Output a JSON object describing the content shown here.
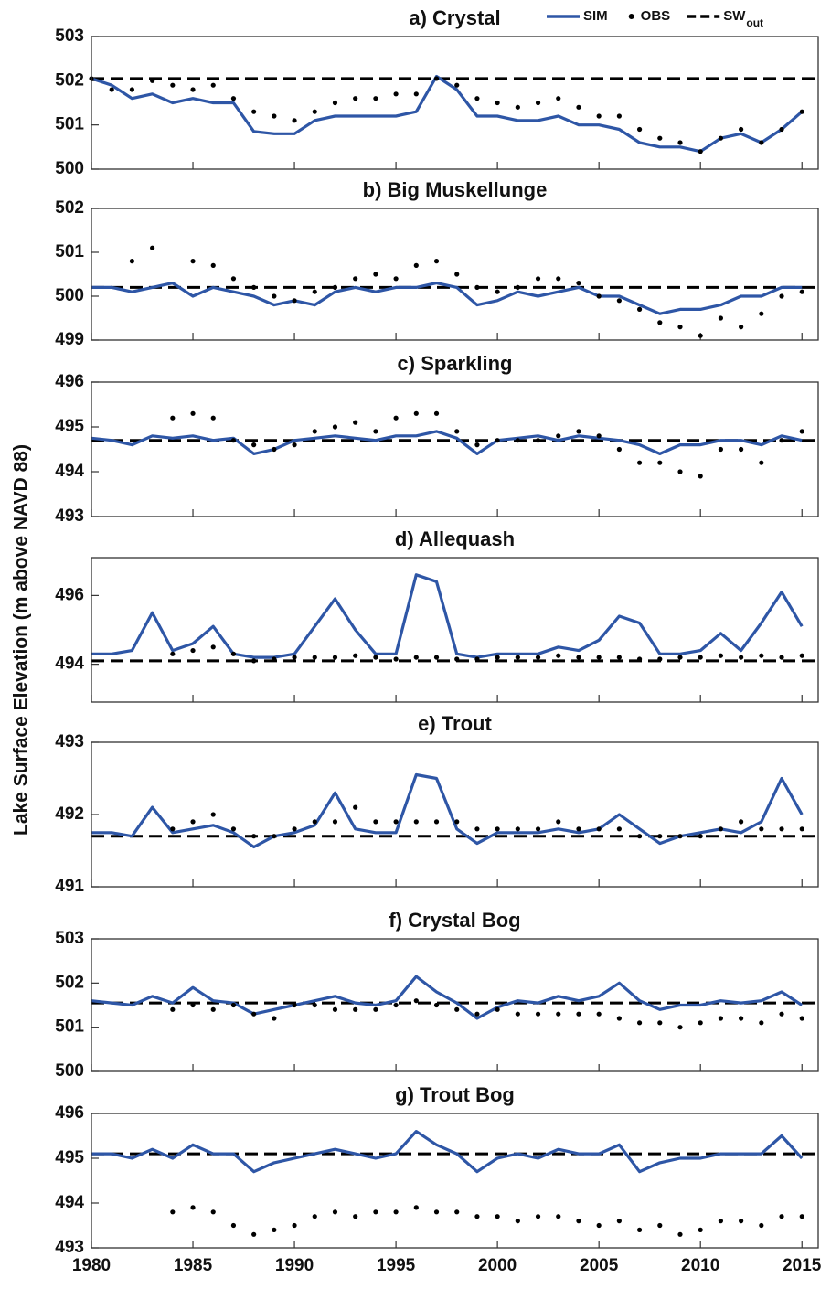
{
  "chart_data": {
    "type": "line",
    "ylabel": "Lake Surface Elevation (m above NAVD 88)",
    "xlim": [
      1980,
      2015.8
    ],
    "xticks": [
      1980,
      1985,
      1990,
      1995,
      2000,
      2005,
      2010,
      2015
    ],
    "legend": [
      {
        "name": "SIM",
        "color": "#2e56a6",
        "style": "solid"
      },
      {
        "name": "OBS",
        "color": "#000000",
        "style": "dots"
      },
      {
        "name": "SW",
        "subscript": "out",
        "color": "#000000",
        "style": "dashed"
      }
    ],
    "panels": [
      {
        "title": "a) Crystal",
        "ylim": [
          500,
          503
        ],
        "yticks": [
          500,
          501,
          502,
          503
        ],
        "x": [
          1980,
          1981,
          1982,
          1983,
          1984,
          1985,
          1986,
          1987,
          1988,
          1989,
          1990,
          1991,
          1992,
          1993,
          1994,
          1995,
          1996,
          1997,
          1998,
          1999,
          2000,
          2001,
          2002,
          2003,
          2004,
          2005,
          2006,
          2007,
          2008,
          2009,
          2010,
          2011,
          2012,
          2013,
          2014,
          2015
        ],
        "sim": [
          502.05,
          501.9,
          501.6,
          501.7,
          501.5,
          501.6,
          501.5,
          501.5,
          500.85,
          500.8,
          500.8,
          501.1,
          501.2,
          501.2,
          501.2,
          501.2,
          501.3,
          502.1,
          501.8,
          501.2,
          501.2,
          501.1,
          501.1,
          501.2,
          501.0,
          501.0,
          500.9,
          500.6,
          500.5,
          500.5,
          500.4,
          500.7,
          500.8,
          500.6,
          500.9,
          501.3
        ],
        "obs": [
          502.05,
          501.8,
          501.8,
          502.0,
          501.9,
          501.8,
          501.9,
          501.6,
          501.3,
          501.2,
          501.1,
          501.3,
          501.5,
          501.6,
          501.6,
          501.7,
          501.7,
          502.05,
          501.9,
          501.6,
          501.5,
          501.4,
          501.5,
          501.6,
          501.4,
          501.2,
          501.2,
          500.9,
          500.7,
          500.6,
          500.4,
          500.7,
          500.9,
          500.6,
          500.9,
          501.3
        ],
        "sw_out": 502.05
      },
      {
        "title": "b) Big Muskellunge",
        "ylim": [
          499,
          502
        ],
        "yticks": [
          499,
          500,
          501,
          502
        ],
        "x": [
          1980,
          1981,
          1982,
          1983,
          1984,
          1985,
          1986,
          1987,
          1988,
          1989,
          1990,
          1991,
          1992,
          1993,
          1994,
          1995,
          1996,
          1997,
          1998,
          1999,
          2000,
          2001,
          2002,
          2003,
          2004,
          2005,
          2006,
          2007,
          2008,
          2009,
          2010,
          2011,
          2012,
          2013,
          2014,
          2015
        ],
        "sim": [
          500.2,
          500.2,
          500.1,
          500.2,
          500.3,
          500.0,
          500.2,
          500.1,
          500.0,
          499.8,
          499.9,
          499.8,
          500.1,
          500.2,
          500.1,
          500.2,
          500.2,
          500.3,
          500.2,
          499.8,
          499.9,
          500.1,
          500.0,
          500.1,
          500.2,
          500.0,
          500.0,
          499.8,
          499.6,
          499.7,
          499.7,
          499.8,
          500.0,
          500.0,
          500.2,
          500.2
        ],
        "obs": [
          null,
          null,
          500.8,
          501.1,
          null,
          500.8,
          500.7,
          500.4,
          500.2,
          500.0,
          499.9,
          500.1,
          500.2,
          500.4,
          500.5,
          500.4,
          500.7,
          500.8,
          500.5,
          500.2,
          500.1,
          500.2,
          500.4,
          500.4,
          500.3,
          500.0,
          499.9,
          499.7,
          499.4,
          499.3,
          499.1,
          499.5,
          499.3,
          499.6,
          500.0,
          500.1
        ],
        "sw_out": 500.2
      },
      {
        "title": "c) Sparkling",
        "ylim": [
          493,
          496
        ],
        "yticks": [
          493,
          494,
          495,
          496
        ],
        "x": [
          1980,
          1981,
          1982,
          1983,
          1984,
          1985,
          1986,
          1987,
          1988,
          1989,
          1990,
          1991,
          1992,
          1993,
          1994,
          1995,
          1996,
          1997,
          1998,
          1999,
          2000,
          2001,
          2002,
          2003,
          2004,
          2005,
          2006,
          2007,
          2008,
          2009,
          2010,
          2011,
          2012,
          2013,
          2014,
          2015
        ],
        "sim": [
          494.75,
          494.7,
          494.6,
          494.8,
          494.75,
          494.8,
          494.7,
          494.75,
          494.4,
          494.5,
          494.7,
          494.75,
          494.8,
          494.75,
          494.7,
          494.8,
          494.8,
          494.9,
          494.75,
          494.4,
          494.7,
          494.75,
          494.8,
          494.7,
          494.8,
          494.75,
          494.7,
          494.6,
          494.4,
          494.6,
          494.6,
          494.7,
          494.7,
          494.6,
          494.8,
          494.7
        ],
        "obs": [
          null,
          null,
          null,
          null,
          495.2,
          495.3,
          495.2,
          494.7,
          494.6,
          494.5,
          494.6,
          494.9,
          495.0,
          495.1,
          494.9,
          495.2,
          495.3,
          495.3,
          494.9,
          494.6,
          494.7,
          494.7,
          494.7,
          494.8,
          494.9,
          494.8,
          494.5,
          494.2,
          494.2,
          494.0,
          493.9,
          494.5,
          494.5,
          494.2,
          494.7,
          494.9
        ],
        "sw_out": 494.7
      },
      {
        "title": "d) Allequash",
        "ylim": [
          492.9,
          497.1
        ],
        "yticks": [
          494,
          496
        ],
        "x": [
          1980,
          1981,
          1982,
          1983,
          1984,
          1985,
          1986,
          1987,
          1988,
          1989,
          1990,
          1991,
          1992,
          1993,
          1994,
          1995,
          1996,
          1997,
          1998,
          1999,
          2000,
          2001,
          2002,
          2003,
          2004,
          2005,
          2006,
          2007,
          2008,
          2009,
          2010,
          2011,
          2012,
          2013,
          2014,
          2015
        ],
        "sim": [
          494.3,
          494.3,
          494.4,
          495.5,
          494.4,
          494.6,
          495.1,
          494.3,
          494.2,
          494.2,
          494.3,
          495.1,
          495.9,
          495.0,
          494.3,
          494.3,
          496.6,
          496.4,
          494.3,
          494.2,
          494.3,
          494.3,
          494.3,
          494.5,
          494.4,
          494.7,
          495.4,
          495.2,
          494.3,
          494.3,
          494.4,
          494.9,
          494.4,
          495.2,
          496.1,
          495.1
        ],
        "obs": [
          null,
          null,
          null,
          null,
          494.3,
          494.4,
          494.5,
          494.3,
          494.1,
          494.15,
          494.2,
          494.2,
          494.2,
          494.25,
          494.2,
          494.15,
          494.2,
          494.2,
          494.15,
          494.15,
          494.2,
          494.2,
          494.2,
          494.25,
          494.2,
          494.2,
          494.2,
          494.15,
          494.15,
          494.2,
          494.2,
          494.25,
          494.2,
          494.25,
          494.2,
          494.25
        ],
        "sw_out": 494.1
      },
      {
        "title": "e) Trout",
        "ylim": [
          491,
          493
        ],
        "yticks": [
          491,
          492,
          493
        ],
        "x": [
          1980,
          1981,
          1982,
          1983,
          1984,
          1985,
          1986,
          1987,
          1988,
          1989,
          1990,
          1991,
          1992,
          1993,
          1994,
          1995,
          1996,
          1997,
          1998,
          1999,
          2000,
          2001,
          2002,
          2003,
          2004,
          2005,
          2006,
          2007,
          2008,
          2009,
          2010,
          2011,
          2012,
          2013,
          2014,
          2015
        ],
        "sim": [
          491.75,
          491.75,
          491.7,
          492.1,
          491.75,
          491.8,
          491.85,
          491.75,
          491.55,
          491.7,
          491.75,
          491.85,
          492.3,
          491.8,
          491.75,
          491.75,
          492.55,
          492.5,
          491.8,
          491.6,
          491.75,
          491.75,
          491.75,
          491.8,
          491.75,
          491.8,
          492.0,
          491.8,
          491.6,
          491.7,
          491.75,
          491.8,
          491.75,
          491.9,
          492.5,
          492.0
        ],
        "obs": [
          null,
          null,
          null,
          null,
          491.8,
          491.9,
          492.0,
          491.8,
          491.7,
          491.7,
          491.8,
          491.9,
          491.9,
          492.1,
          491.9,
          491.9,
          491.9,
          491.9,
          491.9,
          491.8,
          491.8,
          491.8,
          491.8,
          491.9,
          491.8,
          491.8,
          491.8,
          491.7,
          491.7,
          491.7,
          491.7,
          491.8,
          491.9,
          491.8,
          491.8,
          491.8
        ],
        "sw_out": 491.7
      },
      {
        "title": "f) Crystal Bog",
        "ylim": [
          500,
          503
        ],
        "yticks": [
          500,
          501,
          502,
          503
        ],
        "x": [
          1980,
          1981,
          1982,
          1983,
          1984,
          1985,
          1986,
          1987,
          1988,
          1989,
          1990,
          1991,
          1992,
          1993,
          1994,
          1995,
          1996,
          1997,
          1998,
          1999,
          2000,
          2001,
          2002,
          2003,
          2004,
          2005,
          2006,
          2007,
          2008,
          2009,
          2010,
          2011,
          2012,
          2013,
          2014,
          2015
        ],
        "sim": [
          501.6,
          501.55,
          501.5,
          501.7,
          501.55,
          501.9,
          501.6,
          501.55,
          501.3,
          501.4,
          501.5,
          501.6,
          501.7,
          501.55,
          501.5,
          501.6,
          502.15,
          501.8,
          501.55,
          501.2,
          501.45,
          501.6,
          501.55,
          501.7,
          501.6,
          501.7,
          502.0,
          501.6,
          501.4,
          501.5,
          501.5,
          501.6,
          501.55,
          501.6,
          501.8,
          501.5
        ],
        "obs": [
          null,
          null,
          null,
          null,
          501.4,
          501.5,
          501.4,
          501.5,
          501.3,
          501.2,
          501.5,
          501.5,
          501.4,
          501.4,
          501.4,
          501.5,
          501.6,
          501.5,
          501.4,
          501.3,
          501.4,
          501.3,
          501.3,
          501.3,
          501.3,
          501.3,
          501.2,
          501.1,
          501.1,
          501.0,
          501.1,
          501.2,
          501.2,
          501.1,
          501.3,
          501.2
        ],
        "sw_out": 501.55
      },
      {
        "title": "g) Trout Bog",
        "ylim": [
          493,
          496
        ],
        "yticks": [
          493,
          494,
          495,
          496
        ],
        "x": [
          1980,
          1981,
          1982,
          1983,
          1984,
          1985,
          1986,
          1987,
          1988,
          1989,
          1990,
          1991,
          1992,
          1993,
          1994,
          1995,
          1996,
          1997,
          1998,
          1999,
          2000,
          2001,
          2002,
          2003,
          2004,
          2005,
          2006,
          2007,
          2008,
          2009,
          2010,
          2011,
          2012,
          2013,
          2014,
          2015
        ],
        "sim": [
          495.1,
          495.1,
          495.0,
          495.2,
          495.0,
          495.3,
          495.1,
          495.1,
          494.7,
          494.9,
          495.0,
          495.1,
          495.2,
          495.1,
          495.0,
          495.1,
          495.6,
          495.3,
          495.1,
          494.7,
          495.0,
          495.1,
          495.0,
          495.2,
          495.1,
          495.1,
          495.3,
          494.7,
          494.9,
          495.0,
          495.0,
          495.1,
          495.1,
          495.1,
          495.5,
          495.0
        ],
        "obs": [
          null,
          null,
          null,
          null,
          493.8,
          493.9,
          493.8,
          493.5,
          493.3,
          493.4,
          493.5,
          493.7,
          493.8,
          493.7,
          493.8,
          493.8,
          493.9,
          493.8,
          493.8,
          493.7,
          493.7,
          493.6,
          493.7,
          493.7,
          493.6,
          493.5,
          493.6,
          493.4,
          493.5,
          493.3,
          493.4,
          493.6,
          493.6,
          493.5,
          493.7,
          493.7
        ],
        "sw_out": 495.1
      }
    ]
  }
}
